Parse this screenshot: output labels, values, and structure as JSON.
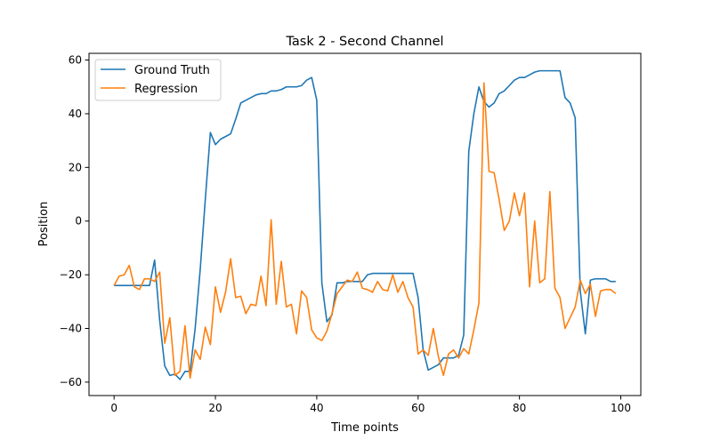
{
  "chart_data": {
    "type": "line",
    "title": "Task 2 - Second Channel",
    "xlabel": "Time points",
    "ylabel": "Position",
    "xlim": [
      -4.95,
      103.95
    ],
    "ylim": [
      -65,
      62.5
    ],
    "xticks": [
      0,
      20,
      40,
      60,
      80,
      100
    ],
    "yticks": [
      -60,
      -40,
      -20,
      0,
      20,
      40,
      60
    ],
    "grid": false,
    "legend": "top-left",
    "series": [
      {
        "name": "Ground Truth",
        "color": "#1f77b4",
        "values": [
          -24,
          -24,
          -24,
          -24,
          -24,
          -24,
          -24,
          -24,
          -14.5,
          -37,
          -54,
          -57.5,
          -57,
          -59,
          -56,
          -56,
          -40,
          -18,
          8,
          33,
          28.5,
          30.5,
          31.5,
          32.5,
          38,
          44,
          45,
          46,
          47,
          47.5,
          47.5,
          48.5,
          48.5,
          49,
          50,
          50,
          50,
          50.5,
          52.5,
          53.5,
          45,
          -23,
          -37.5,
          -35,
          -23,
          -23,
          -22.5,
          -22.5,
          -22.5,
          -22.5,
          -20,
          -19.5,
          -19.5,
          -19.5,
          -19.5,
          -19.5,
          -19.5,
          -19.5,
          -19.5,
          -19.5,
          -28.5,
          -48,
          -55.5,
          -54.5,
          -53.5,
          -51,
          -51,
          -51,
          -50,
          -42.5,
          26,
          40,
          50,
          44.5,
          42.5,
          44,
          47.5,
          48.5,
          50.5,
          52.5,
          53.5,
          53.5,
          54.5,
          55.5,
          56,
          56,
          56,
          56,
          56,
          46,
          44,
          38.5,
          -26,
          -42,
          -22,
          -21.5,
          -21.5,
          -21.5,
          -22.5,
          -22.5
        ]
      },
      {
        "name": "Regression",
        "color": "#ff7f0e",
        "values": [
          -24,
          -20.5,
          -20,
          -16.5,
          -24.5,
          -25.5,
          -21.5,
          -21.5,
          -22.5,
          -19,
          -45.5,
          -36,
          -57.5,
          -56,
          -39,
          -58.5,
          -48,
          -51.5,
          -39.5,
          -46,
          -24.5,
          -34,
          -26.5,
          -14,
          -28.5,
          -28,
          -34.5,
          -31,
          -31.5,
          -20.5,
          -31.5,
          0.5,
          -31,
          -15,
          -32,
          -31,
          -42,
          -26,
          -28.5,
          -40.5,
          -43.5,
          -44.5,
          -41,
          -34.5,
          -27,
          -24.5,
          -22,
          -22.5,
          -19,
          -25,
          -25.5,
          -26.5,
          -22.5,
          -25.5,
          -26,
          -20,
          -26.5,
          -22.5,
          -28.5,
          -32,
          -49.5,
          -48,
          -50,
          -40,
          -50.5,
          -57.5,
          -49.5,
          -48,
          -51,
          -47.5,
          -49.5,
          -40.5,
          -30.5,
          51.5,
          18.5,
          18,
          8,
          -3.5,
          0,
          10.5,
          2,
          10.5,
          -24.5,
          0,
          -23,
          -21.5,
          11,
          -25,
          -28.5,
          -40,
          -36,
          -32,
          -22,
          -27,
          -23.5,
          -35.5,
          -26,
          -25.5,
          -25.5,
          -27
        ]
      }
    ]
  }
}
